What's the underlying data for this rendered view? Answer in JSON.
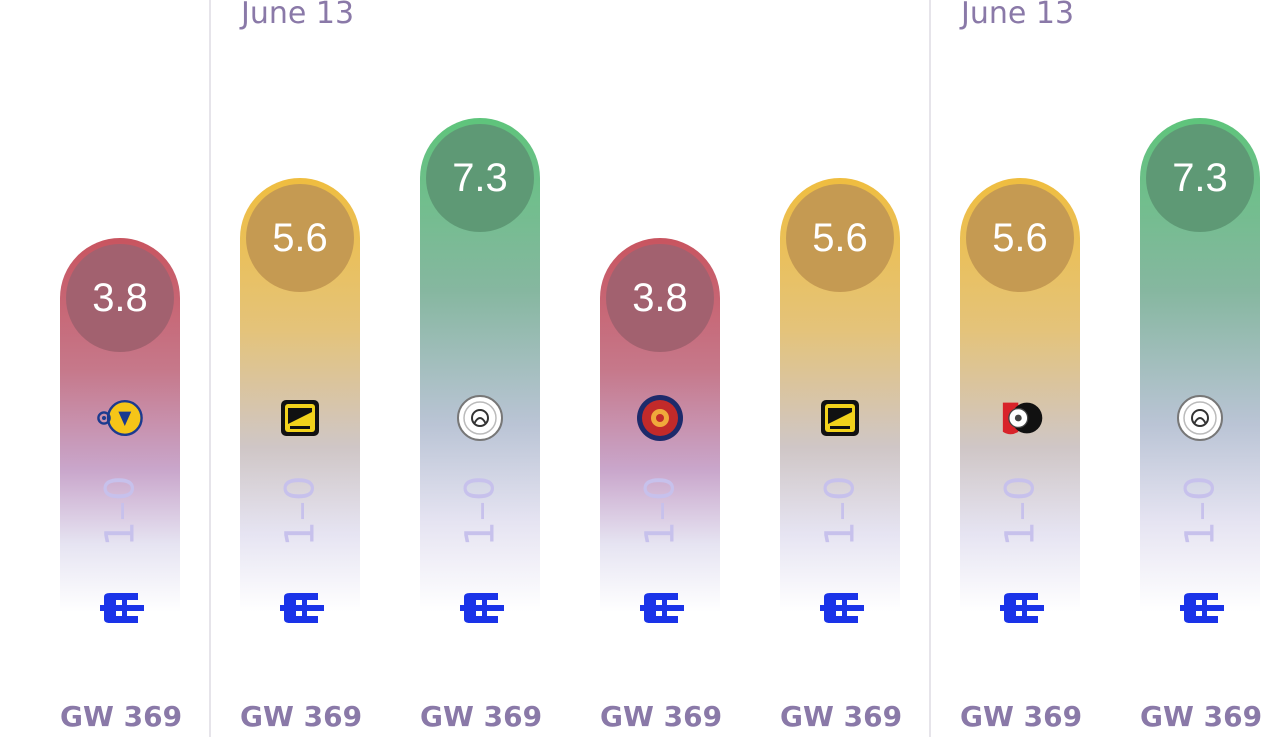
{
  "dates": [
    "June 13",
    "June 13"
  ],
  "cards": [
    {
      "rating": "3.8",
      "tier": "red",
      "team_icon": "al-nassr-crest-icon",
      "result": "1–0",
      "gameweek": "GW 369"
    },
    {
      "rating": "5.6",
      "tier": "yellow",
      "team_icon": "al-ittihad-crest-icon",
      "result": "1–0",
      "gameweek": "GW 369"
    },
    {
      "rating": "7.3",
      "tier": "green",
      "team_icon": "al-shabab-crest-icon",
      "result": "1–0",
      "gameweek": "GW 369"
    },
    {
      "rating": "3.8",
      "tier": "red",
      "team_icon": "damac-crest-icon",
      "result": "1–0",
      "gameweek": "GW 369"
    },
    {
      "rating": "5.6",
      "tier": "yellow",
      "team_icon": "al-ittihad-crest-icon",
      "result": "1–0",
      "gameweek": "GW 369"
    },
    {
      "rating": "5.6",
      "tier": "yellow",
      "team_icon": "al-raed-crest-icon",
      "result": "1–0",
      "gameweek": "GW 369"
    },
    {
      "rating": "7.3",
      "tier": "green",
      "team_icon": "al-shabab-crest-icon",
      "result": "1–0",
      "gameweek": "GW 369"
    }
  ],
  "colors": {
    "red": "#c8545f",
    "yellow": "#efbd3f",
    "green": "#5ec47b",
    "label": "#8a79a8",
    "result": "#c7c1ec",
    "brand": "#1a33e8"
  }
}
